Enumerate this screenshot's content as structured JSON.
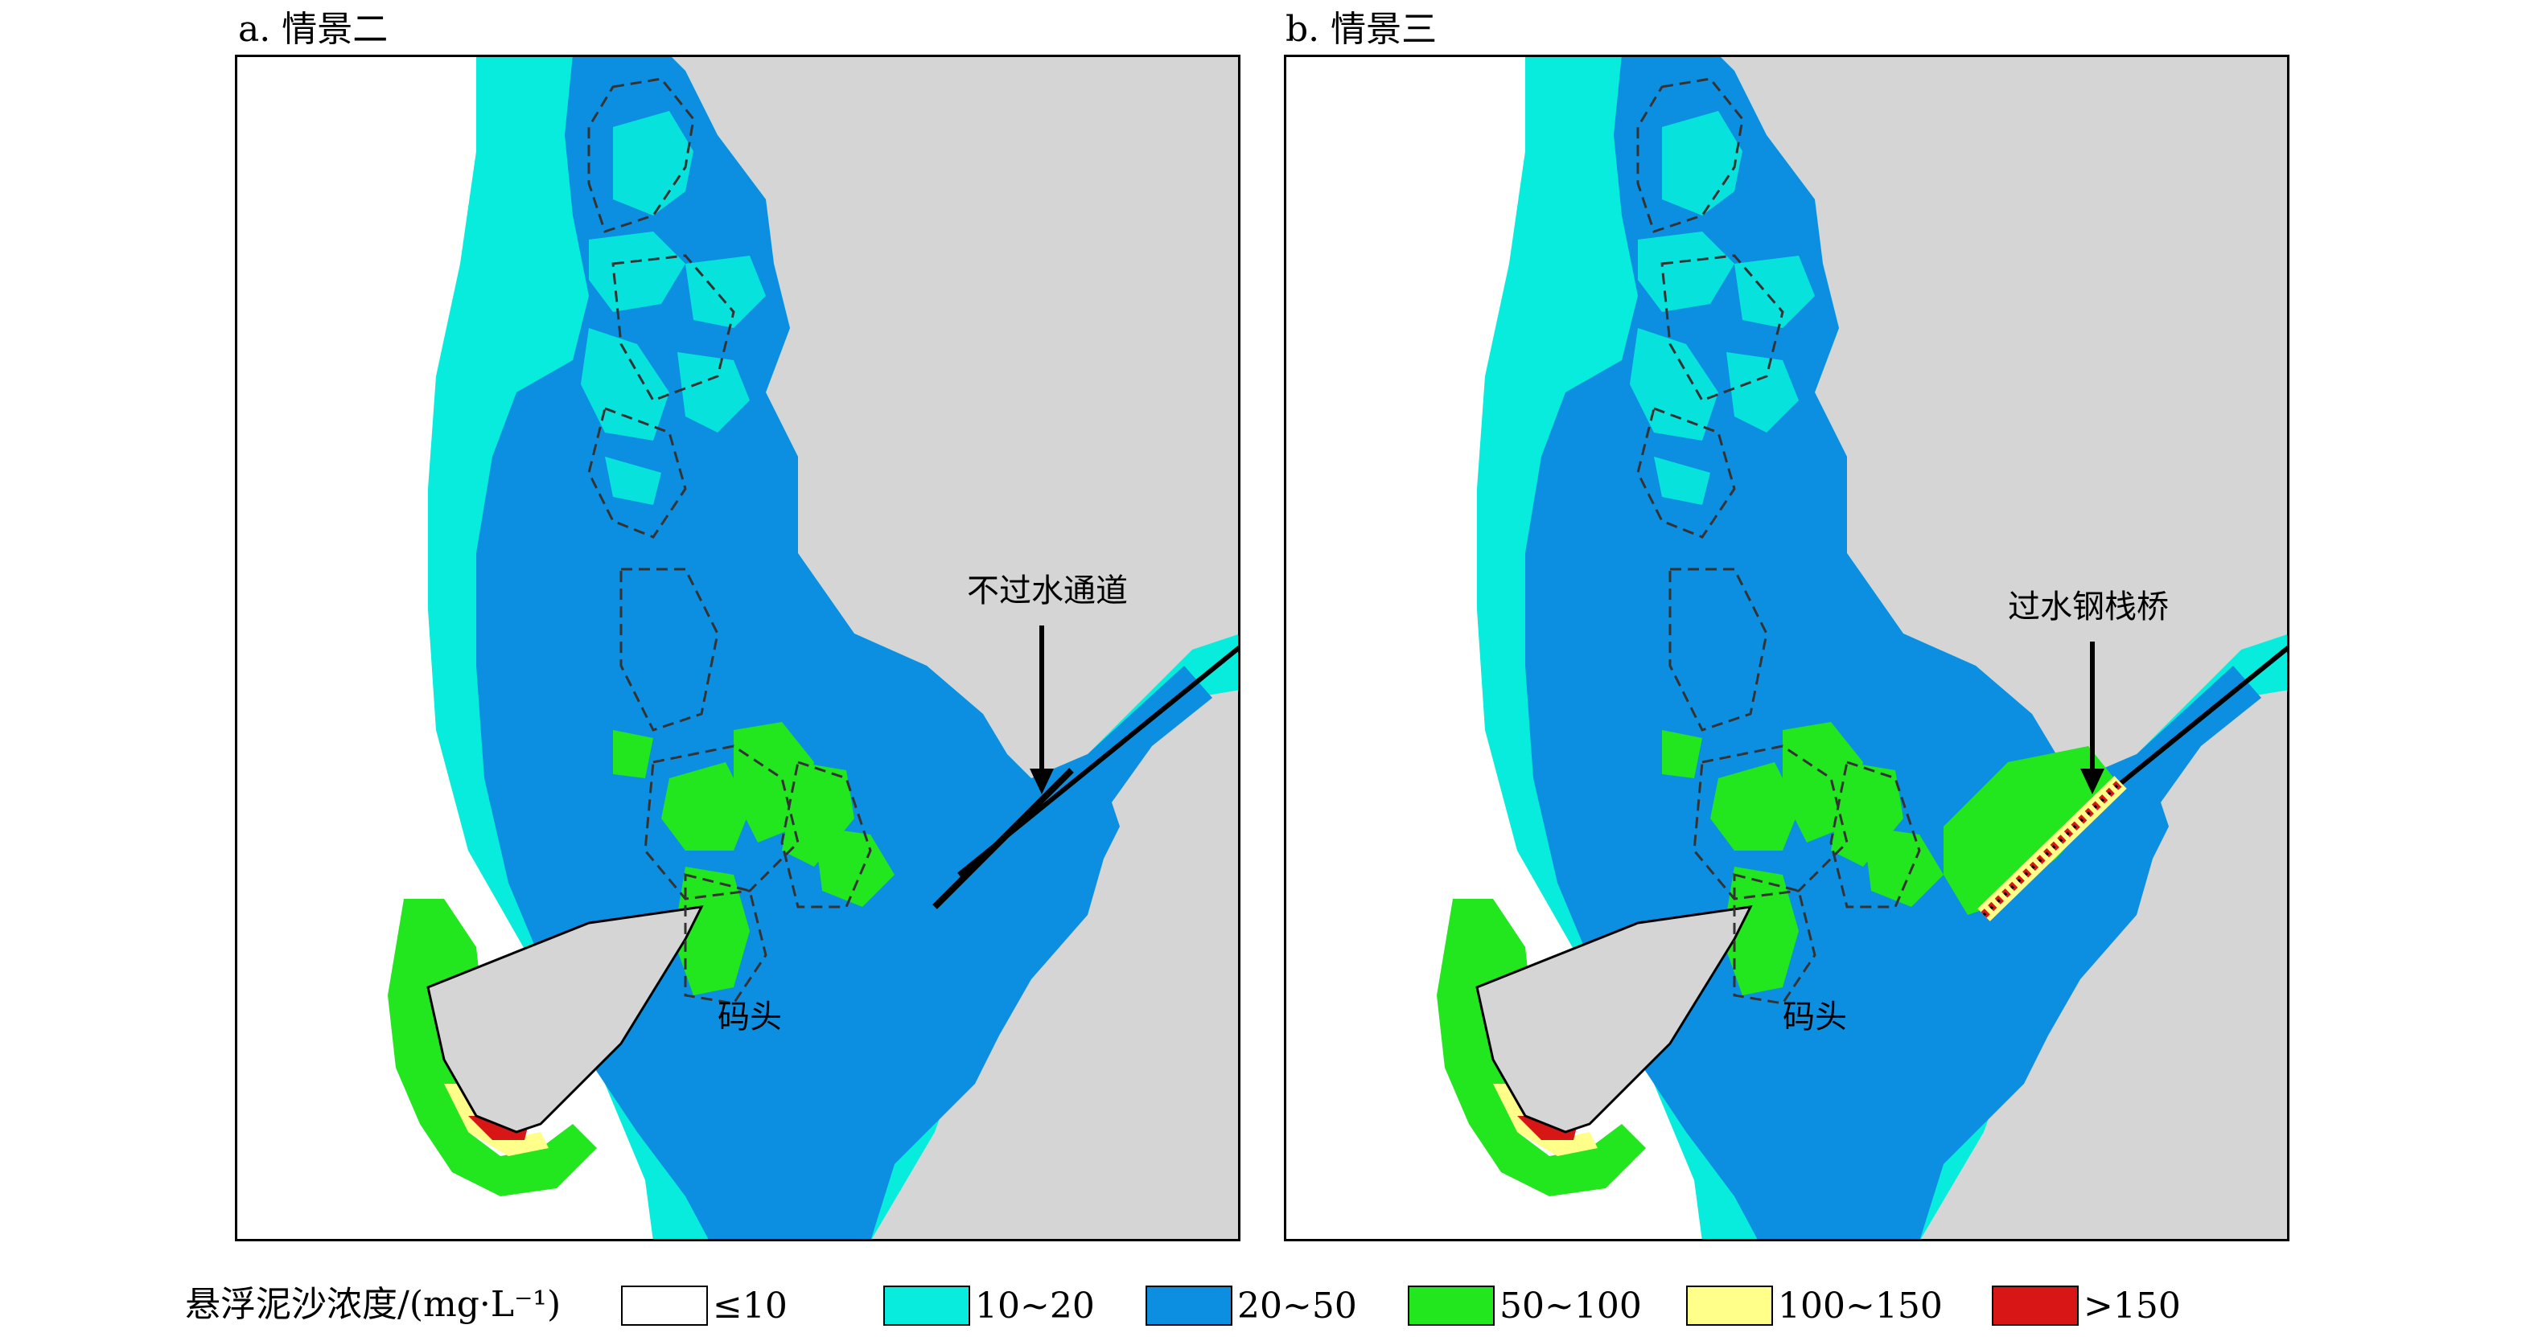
{
  "panels": [
    {
      "label": "a. 情景二",
      "pier_label": "码头",
      "annotation": "不过水通道"
    },
    {
      "label": "b. 情景三",
      "pier_label": "码头",
      "annotation": "过水钢栈桥"
    }
  ],
  "legend": {
    "title": "悬浮泥沙浓度/(mg·L⁻¹)",
    "items": [
      {
        "label": "≤10",
        "color": "#ffffff"
      },
      {
        "label": "10~20",
        "color": "#07ecdc"
      },
      {
        "label": "20~50",
        "color": "#0c8fe0"
      },
      {
        "label": "50~100",
        "color": "#22e61e"
      },
      {
        "label": "100~150",
        "color": "#ffff8a"
      },
      {
        "label": ">150",
        "color": "#d91616"
      }
    ]
  },
  "colors": {
    "land": "#d5d5d5",
    "white_water": "#ffffff"
  }
}
